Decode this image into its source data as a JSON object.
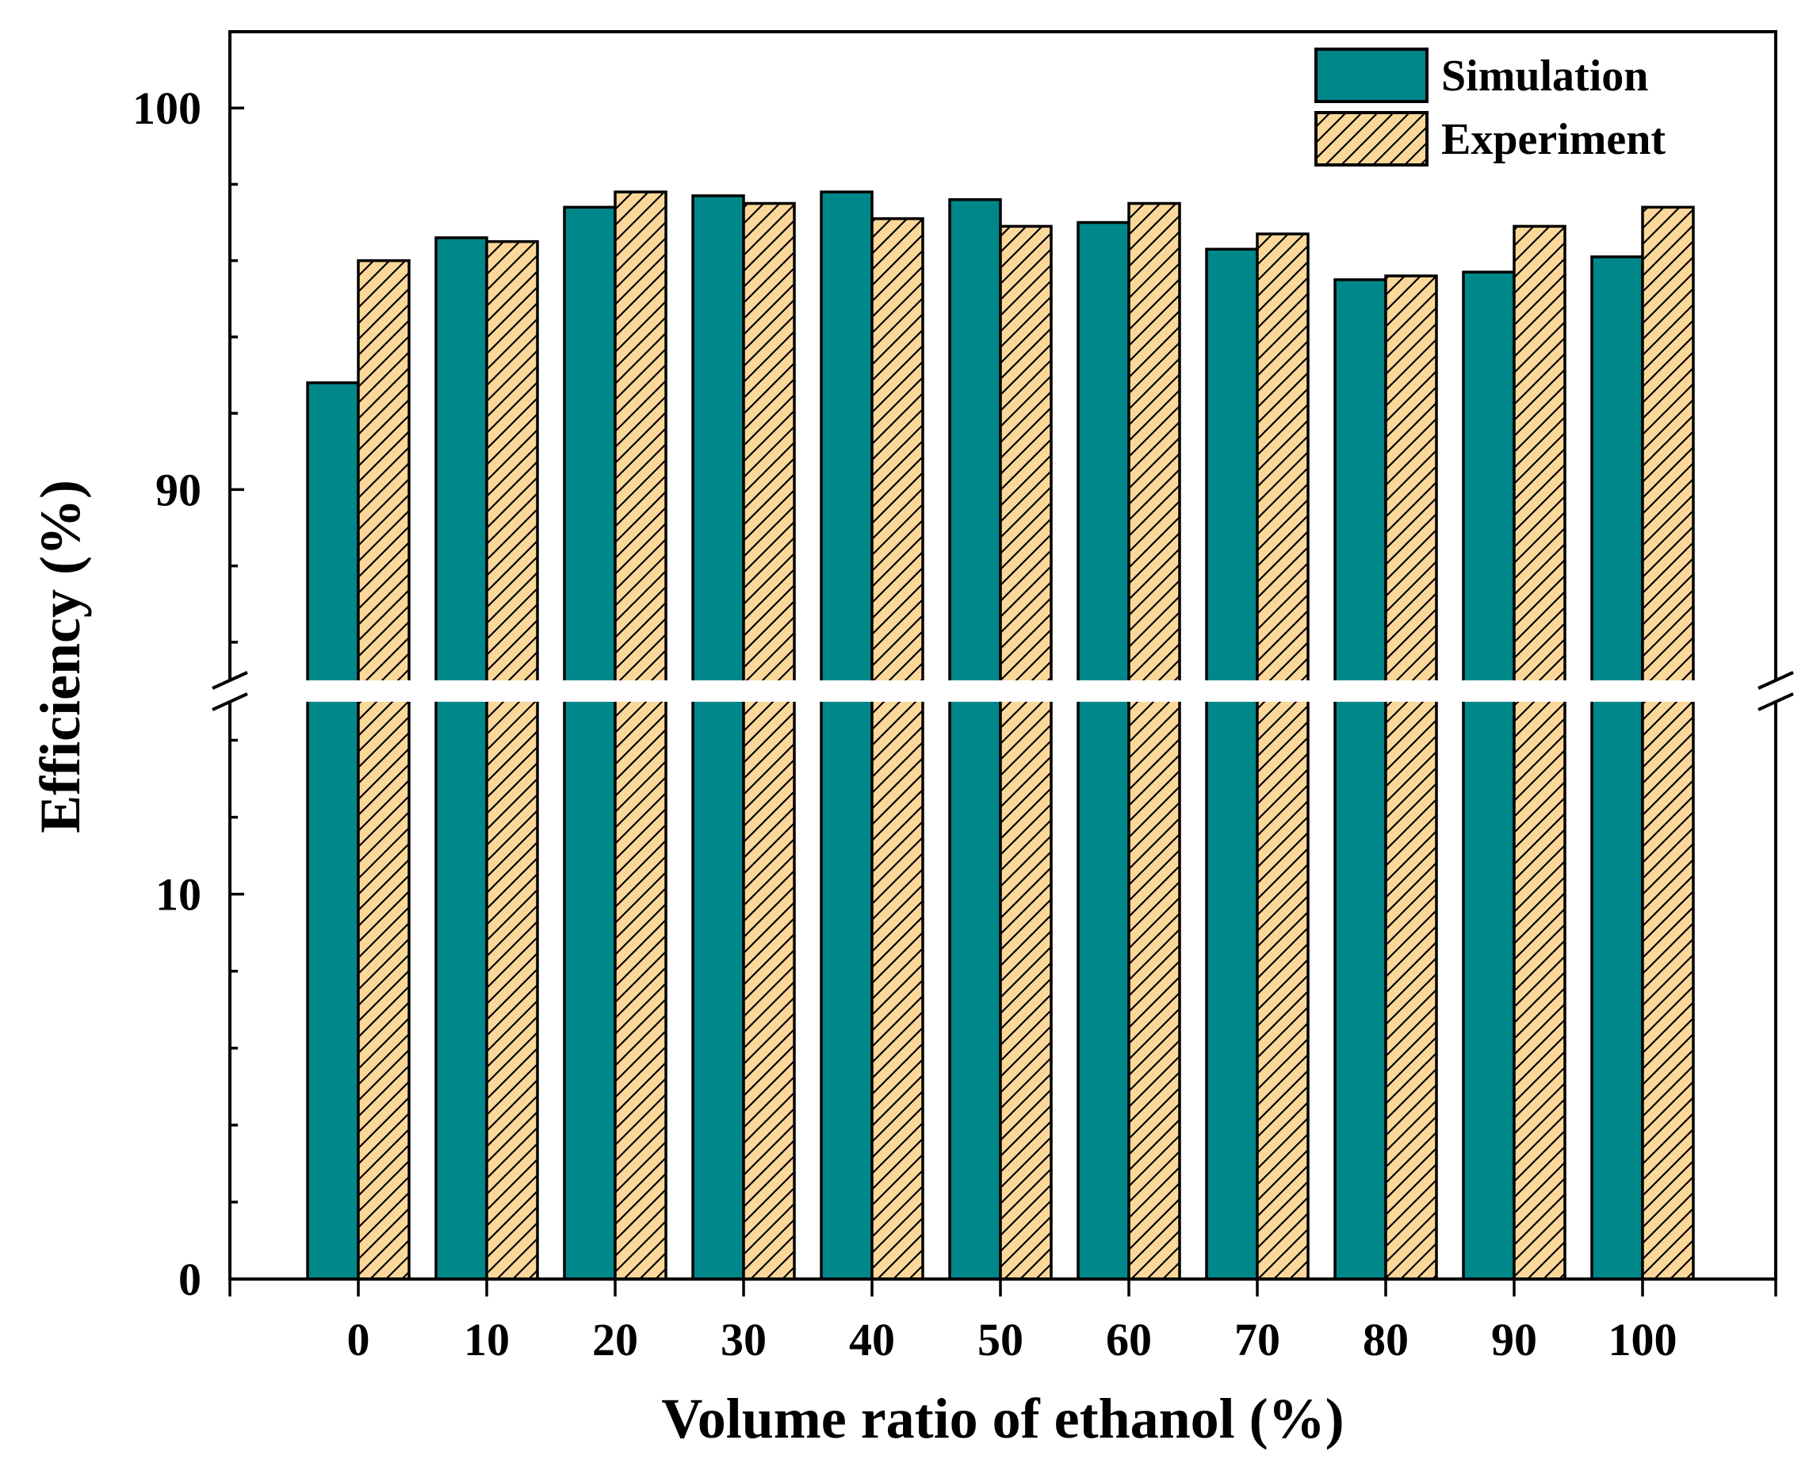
{
  "chart_data": {
    "type": "bar",
    "title": "",
    "xlabel": "Volume ratio of ethanol (%)",
    "ylabel": "Efficiency (%)",
    "categories": [
      "0",
      "10",
      "20",
      "30",
      "40",
      "50",
      "60",
      "70",
      "80",
      "90",
      "100"
    ],
    "series": [
      {
        "name": "Simulation",
        "color": "#00878a",
        "pattern": "solid",
        "values": [
          92.8,
          96.6,
          97.4,
          97.7,
          97.8,
          97.6,
          97.0,
          96.3,
          95.5,
          95.7,
          96.1
        ]
      },
      {
        "name": "Experiment",
        "color": "#fbd89a",
        "pattern": "hatch",
        "values": [
          96.0,
          96.5,
          97.8,
          97.5,
          97.1,
          96.9,
          97.5,
          96.7,
          95.6,
          96.9,
          97.4
        ]
      }
    ],
    "y_axis_break": {
      "lower_segment": {
        "range": [
          0,
          15
        ],
        "major_ticks": [
          0,
          10
        ],
        "minor_step": 2
      },
      "upper_segment": {
        "range": [
          85,
          102
        ],
        "major_ticks": [
          90,
          100
        ],
        "minor_step": 2
      }
    },
    "legend": {
      "placement": "top-right",
      "entries": [
        "Simulation",
        "Experiment"
      ]
    },
    "grid": false
  }
}
